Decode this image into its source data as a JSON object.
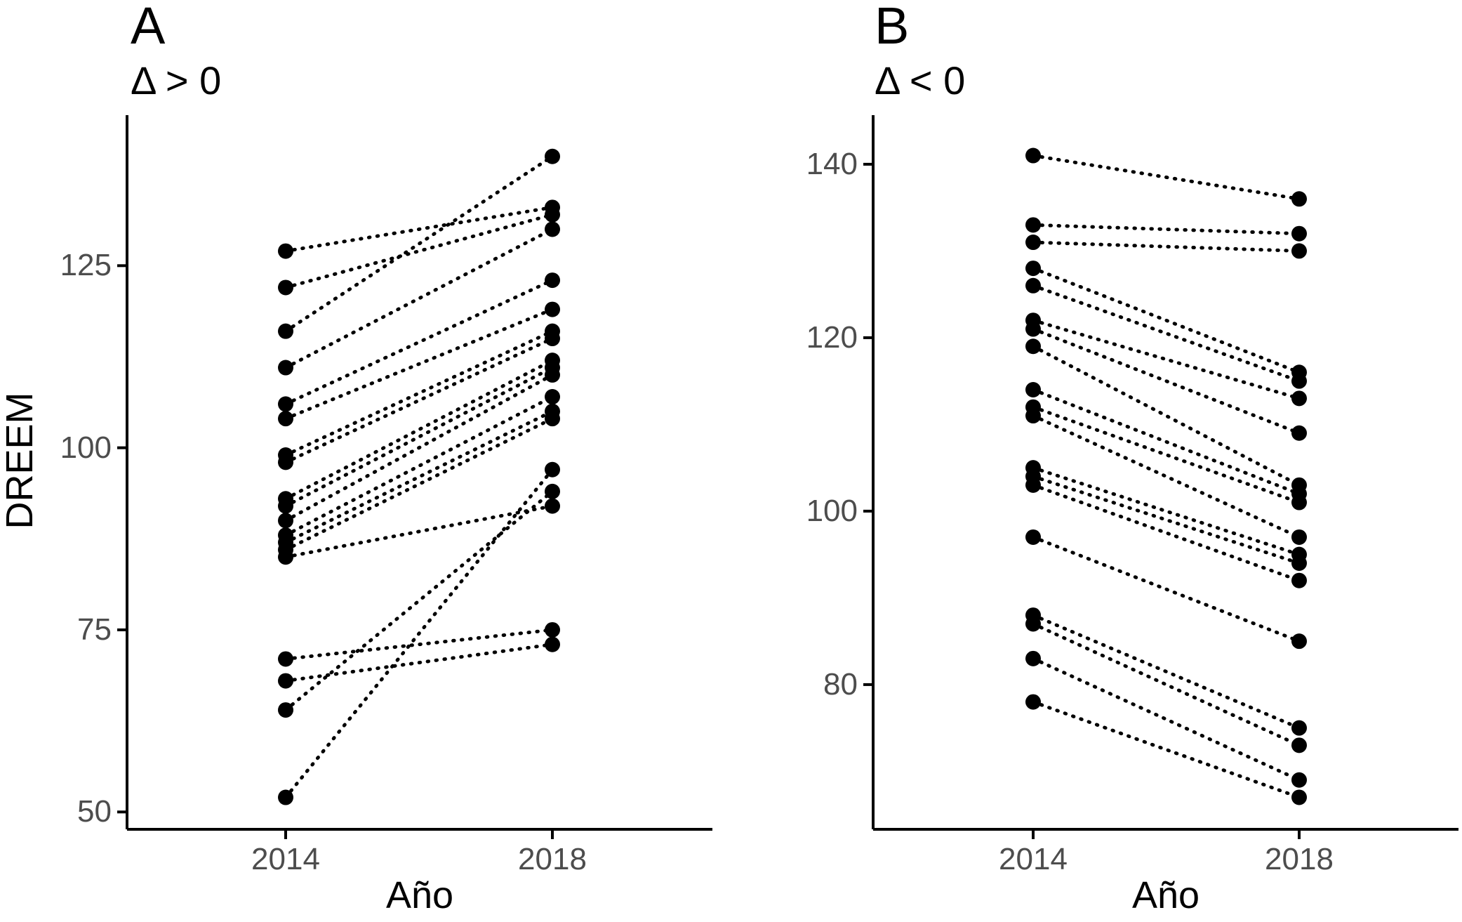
{
  "figure": {
    "background": "#ffffff",
    "point_color": "#000000",
    "line_color": "#000000",
    "axis_line_color": "#000000",
    "axis_text_color": "#4d4d4d",
    "y_axis_title": "DREEM"
  },
  "chart_data": [
    {
      "type": "scatter",
      "variant": "paired-dot-slope-chart",
      "panel_tag": "A",
      "subtitle": "Δ > 0",
      "xlabel": "Año",
      "ylabel": "DREEM",
      "x_categories": [
        "2014",
        "2018"
      ],
      "y_ticks": [
        125,
        100,
        75,
        50
      ],
      "ylim": [
        47,
        146
      ],
      "grid": "off",
      "legend": "none",
      "line_style": "dotted",
      "pairs": [
        [
          127,
          133
        ],
        [
          122,
          132
        ],
        [
          116,
          140
        ],
        [
          111,
          130
        ],
        [
          106,
          123
        ],
        [
          104,
          119
        ],
        [
          99,
          116
        ],
        [
          98,
          115
        ],
        [
          93,
          112
        ],
        [
          92,
          111
        ],
        [
          90,
          110
        ],
        [
          88,
          107
        ],
        [
          87,
          105
        ],
        [
          86,
          104
        ],
        [
          85,
          92
        ],
        [
          71,
          75
        ],
        [
          68,
          73
        ],
        [
          64,
          94
        ],
        [
          52,
          97
        ]
      ]
    },
    {
      "type": "scatter",
      "variant": "paired-dot-slope-chart",
      "panel_tag": "B",
      "subtitle": "Δ < 0",
      "xlabel": "Año",
      "ylabel": "DREEM",
      "x_categories": [
        "2014",
        "2018"
      ],
      "y_ticks": [
        140,
        120,
        100,
        80
      ],
      "ylim": [
        63,
        146
      ],
      "grid": "off",
      "legend": "none",
      "line_style": "dotted",
      "pairs": [
        [
          141,
          136
        ],
        [
          133,
          132
        ],
        [
          131,
          130
        ],
        [
          128,
          116
        ],
        [
          126,
          115
        ],
        [
          122,
          113
        ],
        [
          121,
          109
        ],
        [
          119,
          103
        ],
        [
          114,
          102
        ],
        [
          112,
          101
        ],
        [
          111,
          97
        ],
        [
          105,
          95
        ],
        [
          104,
          94
        ],
        [
          103,
          92
        ],
        [
          97,
          85
        ],
        [
          88,
          75
        ],
        [
          87,
          73
        ],
        [
          83,
          69
        ],
        [
          78,
          67
        ]
      ]
    }
  ]
}
